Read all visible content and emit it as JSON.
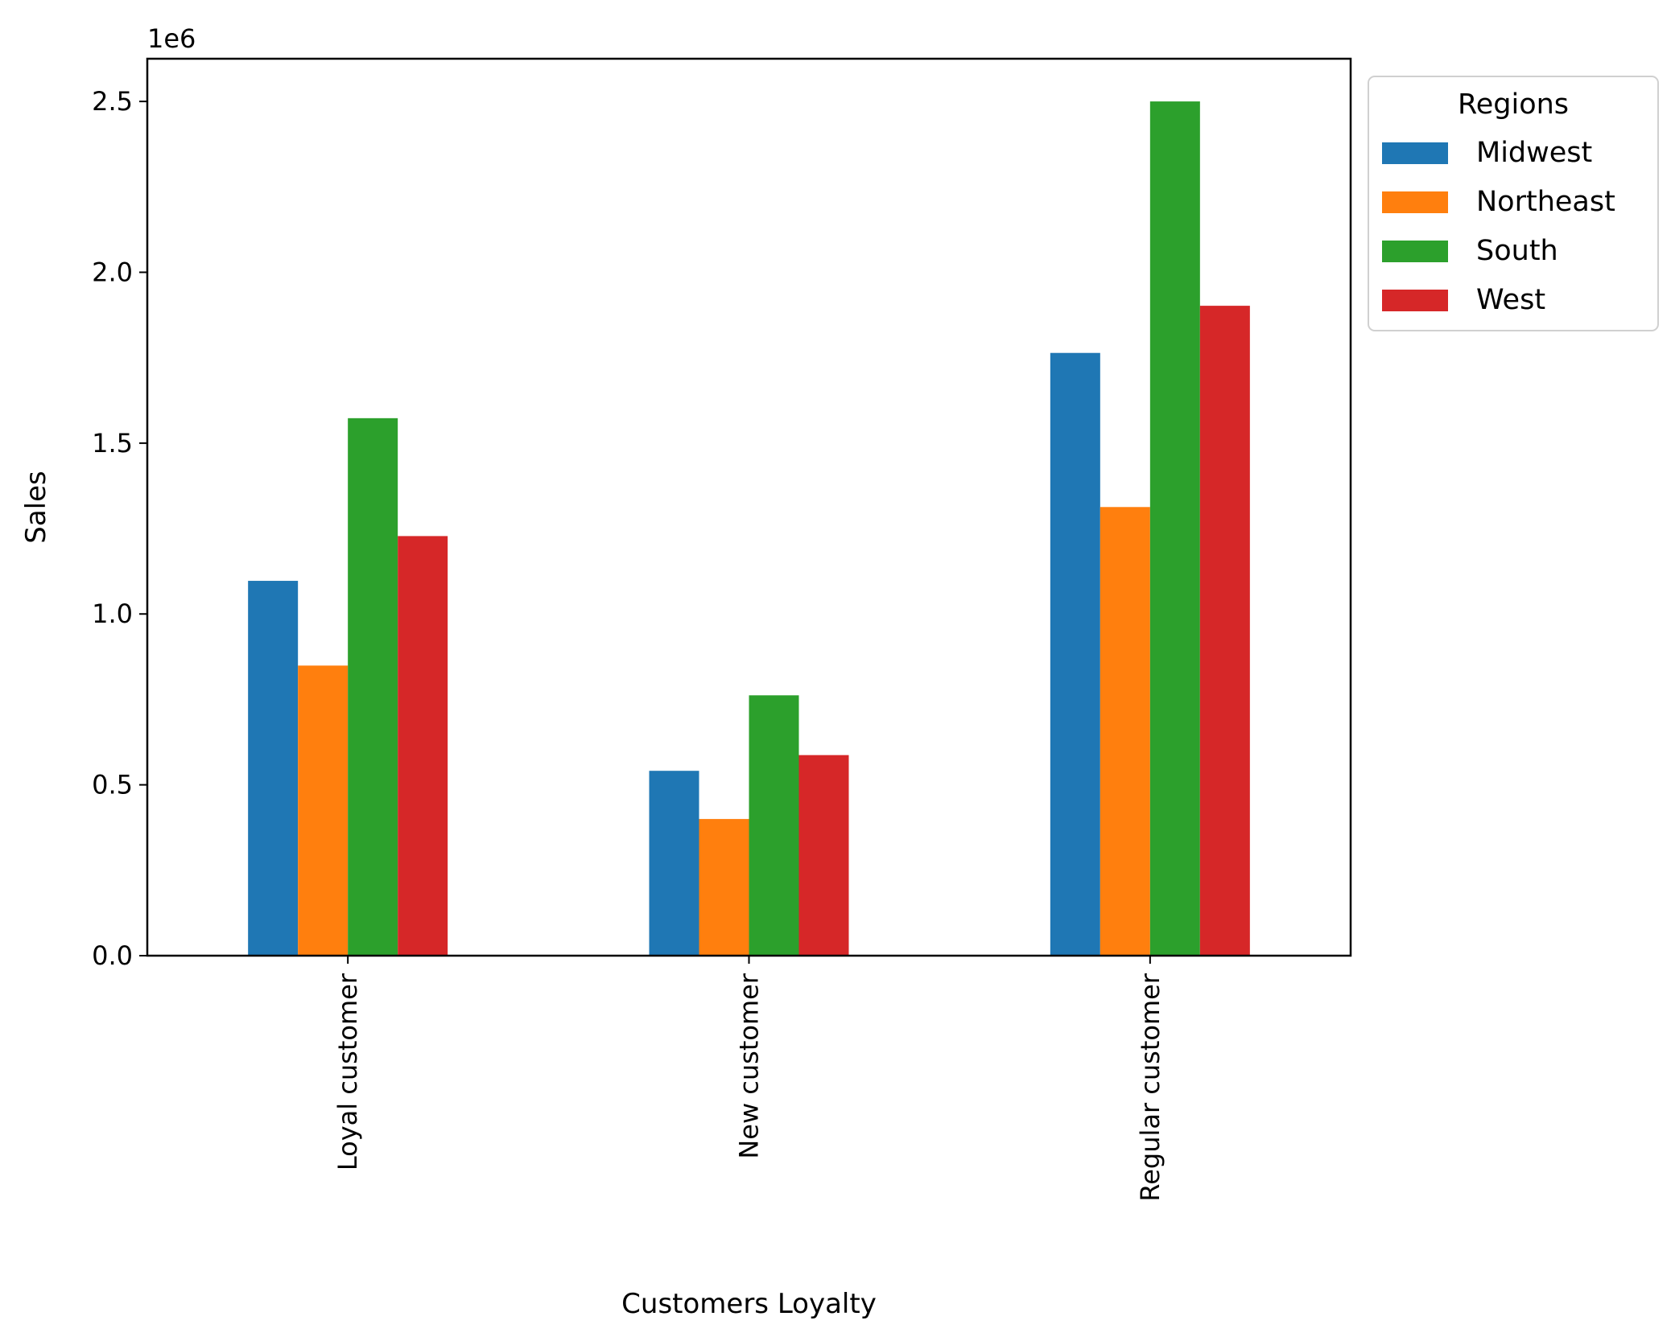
{
  "chart_data": {
    "type": "bar",
    "xlabel": "Customers Loyalty",
    "ylabel": "Sales",
    "y_offset_label": "1e6",
    "categories": [
      "Loyal customer",
      "New customer",
      "Regular customer"
    ],
    "series": [
      {
        "name": "Midwest",
        "color": "#1f77b4",
        "values": [
          1.097,
          0.541,
          1.764
        ]
      },
      {
        "name": "Northeast",
        "color": "#ff7f0e",
        "values": [
          0.849,
          0.4,
          1.313
        ]
      },
      {
        "name": "South",
        "color": "#2ca02c",
        "values": [
          1.573,
          0.762,
          2.5
        ]
      },
      {
        "name": "West",
        "color": "#d62728",
        "values": [
          1.228,
          0.587,
          1.902
        ]
      }
    ],
    "ylim": [
      0,
      2.625
    ],
    "yticks": [
      0.0,
      0.5,
      1.0,
      1.5,
      2.0,
      2.5
    ],
    "ytick_labels": [
      "0.0",
      "0.5",
      "1.0",
      "1.5",
      "2.0",
      "2.5"
    ],
    "legend": {
      "title": "Regions",
      "placement": "outside upper right"
    },
    "grid": false
  }
}
